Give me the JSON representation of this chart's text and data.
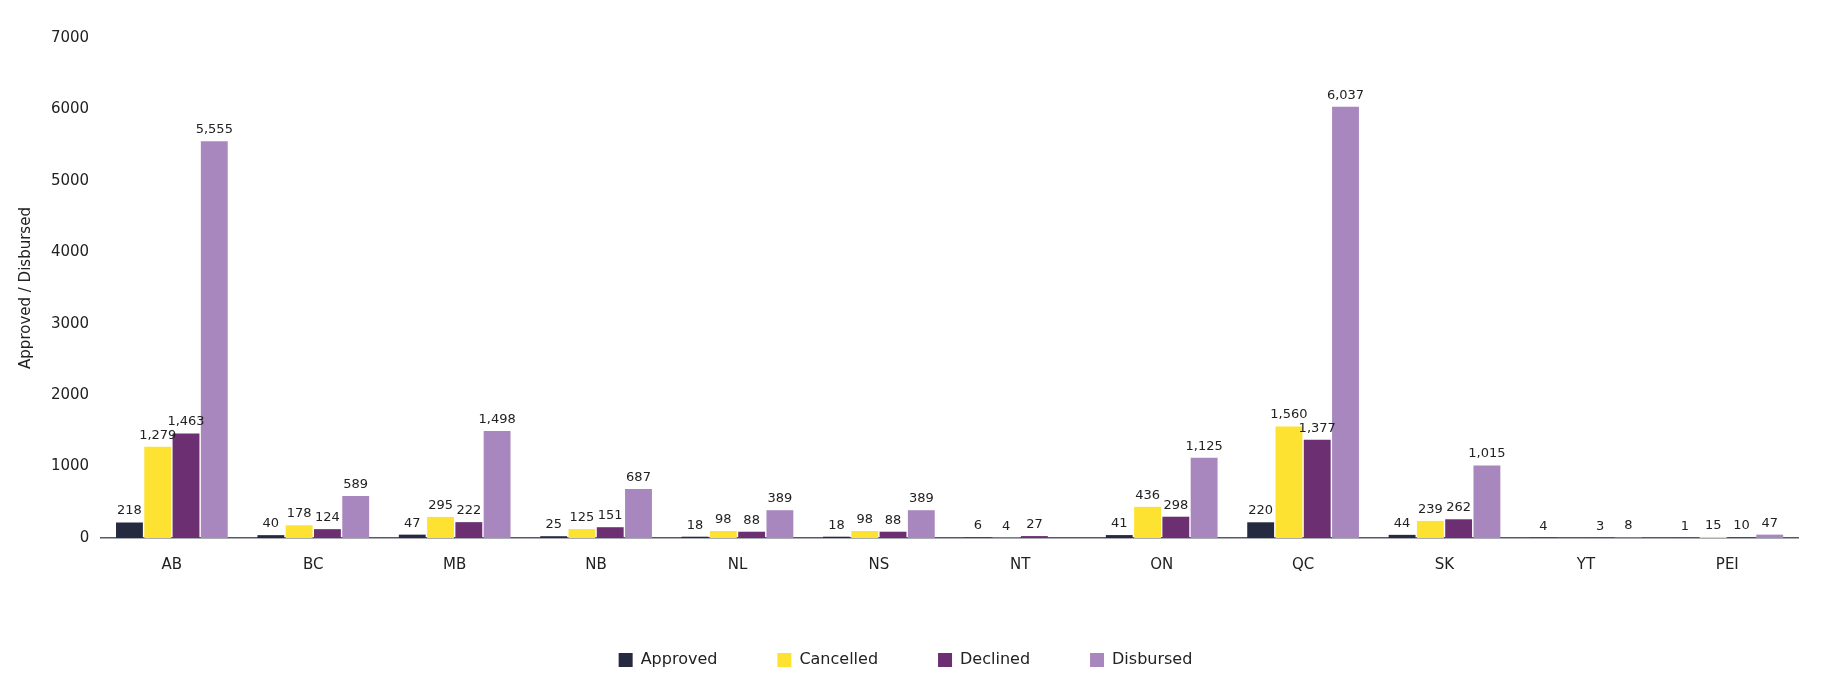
{
  "chart_data": {
    "type": "bar",
    "ylabel": "Approved / Disbursed",
    "categories": [
      "AB",
      "BC",
      "MB",
      "NB",
      "NL",
      "NS",
      "NT",
      "ON",
      "QC",
      "SK",
      "YT",
      "PEI"
    ],
    "series": [
      {
        "name": "Approved",
        "color": "#252a40",
        "values": [
          218,
          40,
          47,
          25,
          18,
          18,
          6,
          41,
          220,
          44,
          4,
          1
        ],
        "value_labels": [
          "218",
          "40",
          "47",
          "25",
          "18",
          "18",
          "6",
          "41",
          "220",
          "44",
          "4",
          "1"
        ]
      },
      {
        "name": "Cancelled",
        "color": "#fde232",
        "values": [
          1279,
          178,
          295,
          125,
          98,
          98,
          4,
          436,
          1560,
          239,
          null,
          15
        ],
        "value_labels": [
          "1,279",
          "178",
          "295",
          "125",
          "98",
          "98",
          "4",
          "436",
          "1,560",
          "239",
          null,
          "15"
        ]
      },
      {
        "name": "Declined",
        "color": "#6b2f72",
        "values": [
          1463,
          124,
          222,
          151,
          88,
          88,
          27,
          298,
          1377,
          262,
          3,
          10
        ],
        "value_labels": [
          "1,463",
          "124",
          "222",
          "151",
          "88",
          "88",
          "27",
          "298",
          "1,377",
          "262",
          "3",
          "10"
        ]
      },
      {
        "name": "Disbursed",
        "color": "#a886be",
        "values": [
          5555,
          589,
          1498,
          687,
          389,
          389,
          null,
          1125,
          6037,
          1015,
          8,
          47
        ],
        "value_labels": [
          "5,555",
          "589",
          "1,498",
          "687",
          "389",
          "389",
          null,
          "1,125",
          "6,037",
          "1,015",
          "8",
          "47"
        ]
      }
    ],
    "ylim": [
      0,
      7000
    ],
    "yticks": [
      0,
      1000,
      2000,
      3000,
      4000,
      5000,
      6000,
      7000
    ],
    "grid": false,
    "legend": "bottom"
  }
}
